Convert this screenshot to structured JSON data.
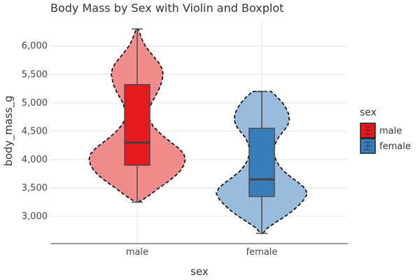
{
  "chart_data": {
    "type": "violin",
    "title": "Body Mass by Sex with Violin and Boxplot",
    "xlabel": "sex",
    "ylabel": "body_mass_g",
    "categories": [
      "male",
      "female"
    ],
    "ylim": [
      2520,
      6440
    ],
    "yticks": [
      3000,
      3500,
      4000,
      4500,
      5000,
      5500,
      6000
    ],
    "ytick_labels": [
      "3,000",
      "3,500",
      "4,000",
      "4,500",
      "5,000",
      "5,500",
      "6,000"
    ],
    "grid": true,
    "legend": {
      "title": "sex",
      "position": "right",
      "entries": [
        "male",
        "female"
      ]
    },
    "series": [
      {
        "name": "male",
        "violin_color": "#f08c8c",
        "box_color": "#e41a1c",
        "box": {
          "min": 3250,
          "q1": 3900,
          "median": 4300,
          "q3": 5320,
          "max": 6300
        },
        "violin_halfwidth": [
          [
            3250,
            0.02
          ],
          [
            3300,
            0.12
          ],
          [
            3400,
            0.28
          ],
          [
            3500,
            0.42
          ],
          [
            3600,
            0.58
          ],
          [
            3700,
            0.72
          ],
          [
            3800,
            0.83
          ],
          [
            3900,
            0.9
          ],
          [
            4000,
            0.93
          ],
          [
            4100,
            0.9
          ],
          [
            4200,
            0.8
          ],
          [
            4300,
            0.66
          ],
          [
            4400,
            0.52
          ],
          [
            4500,
            0.4
          ],
          [
            4600,
            0.3
          ],
          [
            4700,
            0.24
          ],
          [
            4800,
            0.22
          ],
          [
            4900,
            0.24
          ],
          [
            5000,
            0.28
          ],
          [
            5100,
            0.34
          ],
          [
            5200,
            0.4
          ],
          [
            5300,
            0.45
          ],
          [
            5400,
            0.48
          ],
          [
            5500,
            0.5
          ],
          [
            5600,
            0.48
          ],
          [
            5700,
            0.42
          ],
          [
            5800,
            0.33
          ],
          [
            5900,
            0.24
          ],
          [
            6000,
            0.16
          ],
          [
            6100,
            0.1
          ],
          [
            6200,
            0.06
          ],
          [
            6300,
            0.02
          ]
        ]
      },
      {
        "name": "female",
        "violin_color": "#99bcdd",
        "box_color": "#377eb8",
        "box": {
          "min": 2700,
          "q1": 3350,
          "median": 3650,
          "q3": 4550,
          "max": 5200
        },
        "violin_halfwidth": [
          [
            2700,
            0.02
          ],
          [
            2800,
            0.12
          ],
          [
            2900,
            0.28
          ],
          [
            3000,
            0.45
          ],
          [
            3100,
            0.6
          ],
          [
            3200,
            0.72
          ],
          [
            3300,
            0.82
          ],
          [
            3400,
            0.88
          ],
          [
            3500,
            0.83
          ],
          [
            3600,
            0.7
          ],
          [
            3700,
            0.55
          ],
          [
            3800,
            0.42
          ],
          [
            3900,
            0.33
          ],
          [
            4000,
            0.27
          ],
          [
            4100,
            0.24
          ],
          [
            4200,
            0.24
          ],
          [
            4300,
            0.27
          ],
          [
            4400,
            0.33
          ],
          [
            4500,
            0.42
          ],
          [
            4600,
            0.5
          ],
          [
            4700,
            0.53
          ],
          [
            4800,
            0.52
          ],
          [
            4900,
            0.47
          ],
          [
            5000,
            0.4
          ],
          [
            5100,
            0.3
          ],
          [
            5200,
            0.18
          ]
        ]
      }
    ]
  }
}
